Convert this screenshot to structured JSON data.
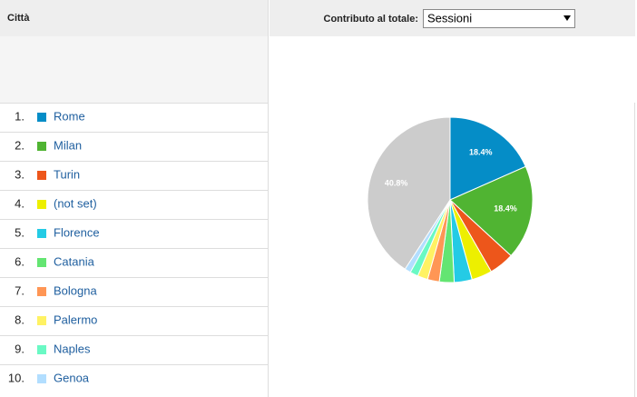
{
  "table": {
    "header": "Città",
    "rows": [
      {
        "rank": "1.",
        "city": "Rome"
      },
      {
        "rank": "2.",
        "city": "Milan"
      },
      {
        "rank": "3.",
        "city": "Turin"
      },
      {
        "rank": "4.",
        "city": "(not set)"
      },
      {
        "rank": "5.",
        "city": "Florence"
      },
      {
        "rank": "6.",
        "city": "Catania"
      },
      {
        "rank": "7.",
        "city": "Bologna"
      },
      {
        "rank": "8.",
        "city": "Palermo"
      },
      {
        "rank": "9.",
        "city": "Naples"
      },
      {
        "rank": "10.",
        "city": "Genoa"
      }
    ]
  },
  "control": {
    "label": "Contributo al totale:",
    "selected": "Sessioni"
  },
  "chart_data": {
    "type": "pie",
    "values": [
      18.4,
      18.4,
      4.9,
      4.0,
      3.5,
      2.9,
      2.3,
      2.0,
      1.6,
      1.2,
      40.8
    ],
    "value_labels": [
      "18.4%",
      "18.4%",
      null,
      null,
      null,
      null,
      null,
      null,
      null,
      null,
      "40.8%"
    ],
    "colors": [
      "#058dc7",
      "#50b432",
      "#ed561b",
      "#edef00",
      "#24cbe5",
      "#64e572",
      "#ff9655",
      "#fff263",
      "#6af9c4",
      "#b2deff",
      "#cccccc"
    ]
  }
}
